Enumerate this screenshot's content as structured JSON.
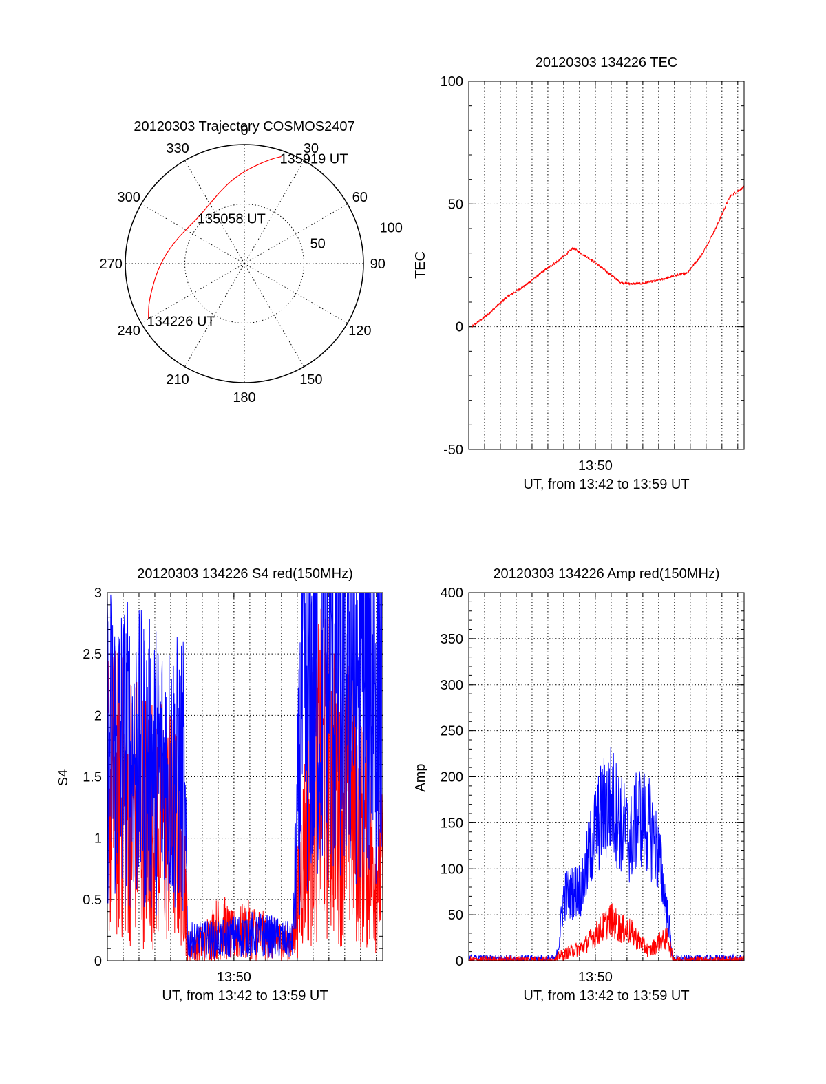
{
  "figure": {
    "colors": {
      "red": "#ff0000",
      "blue": "#0000ff",
      "black": "#000000"
    }
  },
  "chart_data": [
    {
      "id": "polar",
      "type": "polar-trajectory",
      "title": "20120303 Trajectory COSMOS2407",
      "azimuth_labels": [
        {
          "deg": 0,
          "label": "0"
        },
        {
          "deg": 30,
          "label": "30"
        },
        {
          "deg": 60,
          "label": "60"
        },
        {
          "deg": 90,
          "label": "90"
        },
        {
          "deg": 120,
          "label": "120"
        },
        {
          "deg": 150,
          "label": "150"
        },
        {
          "deg": 180,
          "label": "180"
        },
        {
          "deg": 210,
          "label": "210"
        },
        {
          "deg": 240,
          "label": "240"
        },
        {
          "deg": 270,
          "label": "270"
        },
        {
          "deg": 300,
          "label": "300"
        },
        {
          "deg": 330,
          "label": "330"
        }
      ],
      "radial_ticks": [
        {
          "zenith": 50,
          "label": "50"
        },
        {
          "zenith": 100,
          "label": "100"
        }
      ],
      "max_zenith": 100,
      "trajectory": {
        "color": "red",
        "points": [
          {
            "az": 240,
            "zen": 93
          },
          {
            "az": 247,
            "zen": 87
          },
          {
            "az": 255,
            "zen": 80
          },
          {
            "az": 265,
            "zen": 73
          },
          {
            "az": 277,
            "zen": 66
          },
          {
            "az": 290,
            "zen": 60
          },
          {
            "az": 303,
            "zen": 56
          },
          {
            "az": 316,
            "zen": 55
          },
          {
            "az": 330,
            "zen": 58
          },
          {
            "az": 342,
            "zen": 64
          },
          {
            "az": 352,
            "zen": 71
          },
          {
            "az": 1,
            "zen": 78
          },
          {
            "az": 9,
            "zen": 85
          },
          {
            "az": 15,
            "zen": 91
          },
          {
            "az": 19,
            "zen": 95
          }
        ]
      },
      "annotations": [
        {
          "text": "135919 UT",
          "az": 19,
          "zen": 95,
          "anchor": "start"
        },
        {
          "text": "135058 UT",
          "az": 316,
          "zen": 55,
          "anchor": "start"
        },
        {
          "text": "134226 UT",
          "az": 240,
          "zen": 93,
          "anchor": "start"
        }
      ]
    },
    {
      "id": "tec",
      "type": "line",
      "title": "20120303 134226 TEC",
      "ylabel": "TEC",
      "xlabel": "UT, from 13:42 to 13:59 UT",
      "x_range": [
        13.7,
        13.99
      ],
      "ylim": [
        -50,
        100
      ],
      "yticks": [
        -50,
        0,
        50,
        100
      ],
      "xticks": [
        {
          "x": 13.8333,
          "label": "13:50"
        }
      ],
      "series": [
        {
          "name": "TEC",
          "color": "red",
          "noise": 0.6,
          "x": [
            13.7034,
            13.72,
            13.74,
            13.76,
            13.78,
            13.795,
            13.81,
            13.83,
            13.85,
            13.86,
            13.87,
            13.88,
            13.895,
            13.91,
            13.93,
            13.945,
            13.96,
            13.975,
            13.99
          ],
          "y": [
            0,
            5,
            12,
            17,
            23,
            27,
            32,
            27,
            21,
            18,
            17.5,
            17.5,
            18.5,
            20,
            22,
            29,
            40,
            53,
            57
          ]
        }
      ]
    },
    {
      "id": "s4",
      "type": "line",
      "title": "20120303 134226 S4 red(150MHz)",
      "ylabel": "S4",
      "xlabel": "UT, from 13:42 to 13:59 UT",
      "x_range": [
        13.7,
        13.99
      ],
      "ylim": [
        0,
        3
      ],
      "yticks": [
        0,
        0.5,
        1,
        1.5,
        2,
        2.5,
        3
      ],
      "ytick_labels": [
        "0",
        "0.5",
        "1",
        "1.5",
        "2",
        "2.5",
        "3"
      ],
      "xticks": [
        {
          "x": 13.8333,
          "label": "13:50"
        }
      ],
      "series": [
        {
          "name": "S4 red",
          "color": "red",
          "noise": 0.9,
          "x": [
            13.7,
            13.74,
            13.78,
            13.785,
            13.8,
            13.82,
            13.83,
            13.85,
            13.87,
            13.895,
            13.905,
            13.92,
            13.94,
            13.96,
            13.975,
            13.99
          ],
          "y": [
            1.4,
            1.2,
            1.0,
            0.12,
            0.14,
            0.3,
            0.2,
            0.25,
            0.18,
            0.14,
            0.8,
            1.5,
            1.5,
            1.2,
            0.9,
            0.7
          ]
        },
        {
          "name": "S4 blue",
          "color": "blue",
          "noise": 0.75,
          "x": [
            13.7,
            13.74,
            13.78,
            13.785,
            13.82,
            13.85,
            13.87,
            13.895,
            13.905,
            13.93,
            13.96,
            13.99
          ],
          "y": [
            1.8,
            1.6,
            1.5,
            0.16,
            0.18,
            0.22,
            0.2,
            0.16,
            2.0,
            2.3,
            2.4,
            2.3
          ]
        }
      ]
    },
    {
      "id": "amp",
      "type": "line",
      "title": "20120303 134226 Amp red(150MHz)",
      "ylabel": "Amp",
      "xlabel": "UT, from 13:42 to 13:59 UT",
      "x_range": [
        13.7,
        13.99
      ],
      "ylim": [
        0,
        400
      ],
      "yticks": [
        0,
        50,
        100,
        150,
        200,
        250,
        300,
        350,
        400
      ],
      "xticks": [
        {
          "x": 13.8333,
          "label": "13:50"
        }
      ],
      "series": [
        {
          "name": "Amp blue",
          "color": "blue",
          "noise": 0.35,
          "x": [
            13.7,
            13.792,
            13.795,
            13.8,
            13.81,
            13.82,
            13.83,
            13.84,
            13.85,
            13.86,
            13.87,
            13.88,
            13.89,
            13.9,
            13.91,
            13.915,
            13.92,
            13.99
          ],
          "y": [
            2,
            2,
            20,
            70,
            75,
            80,
            130,
            160,
            175,
            150,
            130,
            160,
            145,
            115,
            45,
            2,
            2,
            2
          ]
        },
        {
          "name": "Amp red",
          "color": "red",
          "noise": 0.35,
          "x": [
            13.7,
            13.792,
            13.795,
            13.82,
            13.84,
            13.85,
            13.86,
            13.87,
            13.89,
            13.9,
            13.91,
            13.915,
            13.92,
            13.99
          ],
          "y": [
            1,
            1,
            5,
            15,
            35,
            45,
            35,
            32,
            10,
            20,
            25,
            2,
            1,
            1
          ]
        }
      ]
    }
  ]
}
